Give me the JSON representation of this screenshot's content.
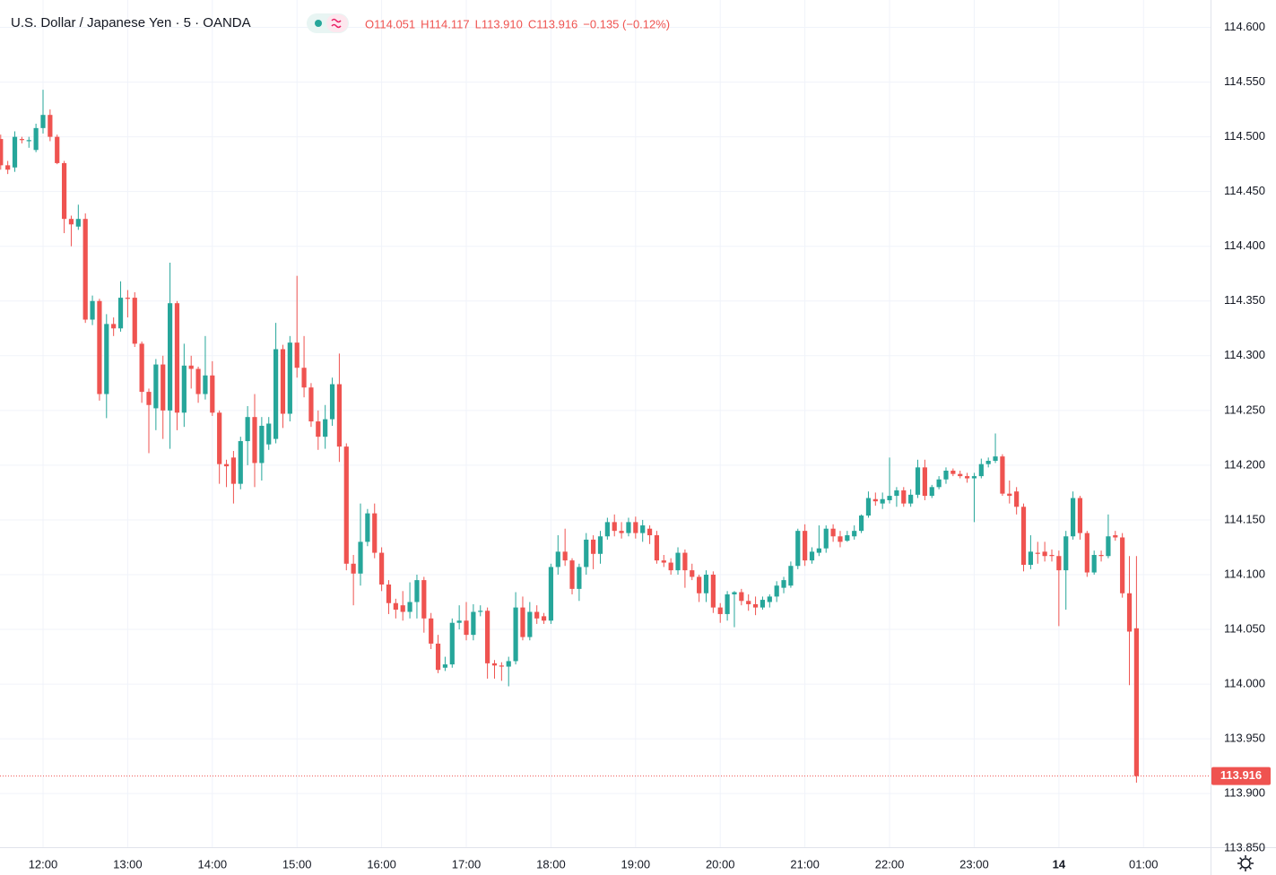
{
  "header": {
    "title": "U.S. Dollar / Japanese Yen · 5 · OANDA",
    "ohlc": [
      "O114.051",
      "H114.117",
      "L113.910",
      "C113.916"
    ],
    "change": "−0.135 (−0.12%)"
  },
  "chart_data": {
    "type": "candlestick",
    "up_color": "#26a69a",
    "down_color": "#ef5350",
    "grid": true,
    "ylim": [
      113.851,
      114.625
    ],
    "xlim": [
      -0.1,
      171.5
    ],
    "yticks": [
      {
        "value": 113.85,
        "label": "113.850"
      },
      {
        "value": 113.9,
        "label": "113.900"
      },
      {
        "value": 113.95,
        "label": "113.950"
      },
      {
        "value": 114,
        "label": "114.000"
      },
      {
        "value": 114.05,
        "label": "114.050"
      },
      {
        "value": 114.1,
        "label": "114.100"
      },
      {
        "value": 114.15,
        "label": "114.150"
      },
      {
        "value": 114.2,
        "label": "114.200"
      },
      {
        "value": 114.25,
        "label": "114.250"
      },
      {
        "value": 114.3,
        "label": "114.300"
      },
      {
        "value": 114.35,
        "label": "114.350"
      },
      {
        "value": 114.4,
        "label": "114.400"
      },
      {
        "value": 114.45,
        "label": "114.450"
      },
      {
        "value": 114.5,
        "label": "114.500"
      },
      {
        "value": 114.55,
        "label": "114.550"
      },
      {
        "value": 114.6,
        "label": "114.600"
      }
    ],
    "xticks": [
      {
        "value": 6,
        "label": "12:00"
      },
      {
        "value": 18,
        "label": "13:00"
      },
      {
        "value": 30,
        "label": "14:00"
      },
      {
        "value": 42,
        "label": "15:00"
      },
      {
        "value": 54,
        "label": "16:00"
      },
      {
        "value": 66,
        "label": "17:00"
      },
      {
        "value": 78,
        "label": "18:00"
      },
      {
        "value": 90,
        "label": "19:00"
      },
      {
        "value": 102,
        "label": "20:00"
      },
      {
        "value": 114,
        "label": "21:00"
      },
      {
        "value": 126,
        "label": "22:00"
      },
      {
        "value": 138,
        "label": "23:00"
      },
      {
        "value": 150,
        "label": "14"
      },
      {
        "value": 162,
        "label": "01:00"
      }
    ],
    "last_price": 113.916,
    "open": [
      114.498,
      114.474,
      114.472,
      114.498,
      114.496,
      114.488,
      114.508,
      114.52,
      114.5,
      114.476,
      114.425,
      114.418,
      114.425,
      114.333,
      114.35,
      114.265,
      114.329,
      114.325,
      114.353,
      114.353,
      114.311,
      114.267,
      114.252,
      114.292,
      114.25,
      114.348,
      114.248,
      114.291,
      114.288,
      114.265,
      114.282,
      114.248,
      114.201,
      114.207,
      114.183,
      114.222,
      114.244,
      114.202,
      114.219,
      114.224,
      114.306,
      114.247,
      114.312,
      114.289,
      114.271,
      114.24,
      114.226,
      114.242,
      114.274,
      114.217,
      114.11,
      114.101,
      114.13,
      114.156,
      114.12,
      114.091,
      114.074,
      114.072,
      114.066,
      114.075,
      114.095,
      114.06,
      114.037,
      114.015,
      114.018,
      114.056,
      114.058,
      114.045,
      114.066,
      114.067,
      114.019,
      114.017,
      114.016,
      114.021,
      114.07,
      114.043,
      114.066,
      114.062,
      114.058,
      114.107,
      114.121,
      114.113,
      114.087,
      114.107,
      114.132,
      114.119,
      114.135,
      114.148,
      114.14,
      114.138,
      114.148,
      114.138,
      114.142,
      114.136,
      114.113,
      114.111,
      114.104,
      114.12,
      114.104,
      114.098,
      114.083,
      114.1,
      114.07,
      114.064,
      114.082,
      114.084,
      114.076,
      114.073,
      114.07,
      114.075,
      114.08,
      114.088,
      114.09,
      114.108,
      114.14,
      114.113,
      114.12,
      114.124,
      114.142,
      114.135,
      114.131,
      114.135,
      114.14,
      114.154,
      114.169,
      114.165,
      114.168,
      114.172,
      114.177,
      114.165,
      114.173,
      114.198,
      114.172,
      114.18,
      114.187,
      114.195,
      114.192,
      114.19,
      114.188,
      114.19,
      114.201,
      114.204,
      114.208,
      114.174,
      114.176,
      114.162,
      114.109,
      114.12,
      114.121,
      114.118,
      114.117,
      114.104,
      114.135,
      114.17,
      114.138,
      114.102,
      114.118,
      114.117,
      114.136,
      114.134,
      114.083,
      114.051
    ],
    "high": [
      114.502,
      114.478,
      114.505,
      114.5,
      114.5,
      114.512,
      114.543,
      114.525,
      114.502,
      114.478,
      114.428,
      114.438,
      114.43,
      114.355,
      114.352,
      114.338,
      114.335,
      114.368,
      114.36,
      114.358,
      114.313,
      114.27,
      114.297,
      114.3,
      114.385,
      114.35,
      114.311,
      114.3,
      114.29,
      114.318,
      114.295,
      114.25,
      114.205,
      114.213,
      114.226,
      114.254,
      114.265,
      114.244,
      114.244,
      114.33,
      114.31,
      114.318,
      114.373,
      114.318,
      114.275,
      114.25,
      114.255,
      114.28,
      114.302,
      114.22,
      114.118,
      114.165,
      114.16,
      114.165,
      114.125,
      114.095,
      114.078,
      114.085,
      114.093,
      114.1,
      114.098,
      114.065,
      114.045,
      114.025,
      114.06,
      114.072,
      114.075,
      114.073,
      114.072,
      114.07,
      114.022,
      114.02,
      114.025,
      114.084,
      114.08,
      114.075,
      114.072,
      114.065,
      114.11,
      114.136,
      114.142,
      114.115,
      114.11,
      114.138,
      114.136,
      114.14,
      114.152,
      114.155,
      114.148,
      114.152,
      114.153,
      114.15,
      114.145,
      114.14,
      114.118,
      114.115,
      114.125,
      114.123,
      114.11,
      114.1,
      114.104,
      114.103,
      114.074,
      114.085,
      114.085,
      114.087,
      114.082,
      114.08,
      114.08,
      114.082,
      114.094,
      114.098,
      114.112,
      114.142,
      114.146,
      114.125,
      114.145,
      114.145,
      114.146,
      114.14,
      114.14,
      114.145,
      114.155,
      114.176,
      114.175,
      114.175,
      114.207,
      114.18,
      114.18,
      114.178,
      114.205,
      114.205,
      114.182,
      114.19,
      114.198,
      114.197,
      114.195,
      114.193,
      114.193,
      114.206,
      114.207,
      114.229,
      114.21,
      114.186,
      114.18,
      114.165,
      114.136,
      114.13,
      114.13,
      114.123,
      114.122,
      114.14,
      114.176,
      114.172,
      114.14,
      114.122,
      114.122,
      114.155,
      114.14,
      114.138,
      114.117,
      114.117
    ],
    "low": [
      114.47,
      114.466,
      114.468,
      114.494,
      114.49,
      114.486,
      114.503,
      114.496,
      114.475,
      114.412,
      114.4,
      114.415,
      114.33,
      114.328,
      114.259,
      114.243,
      114.318,
      114.322,
      114.335,
      114.308,
      114.257,
      114.211,
      114.232,
      114.224,
      114.215,
      114.232,
      114.235,
      114.27,
      114.257,
      114.26,
      114.245,
      114.183,
      114.18,
      114.165,
      114.178,
      114.2,
      114.18,
      114.186,
      114.214,
      114.22,
      114.234,
      114.24,
      114.28,
      114.262,
      114.235,
      114.214,
      114.215,
      114.236,
      114.203,
      114.104,
      114.072,
      114.09,
      114.126,
      114.115,
      114.085,
      114.064,
      114.06,
      114.058,
      114.06,
      114.06,
      114.047,
      114.032,
      114.01,
      114.012,
      114.015,
      114.05,
      114.04,
      114.04,
      114.062,
      114.005,
      114.005,
      114.003,
      113.998,
      114.018,
      114.04,
      114.04,
      114.055,
      114.055,
      114.055,
      114.1,
      114.108,
      114.082,
      114.076,
      114.1,
      114.105,
      114.11,
      114.132,
      114.135,
      114.133,
      114.135,
      114.133,
      114.13,
      114.128,
      114.11,
      114.107,
      114.1,
      114.1,
      114.088,
      114.095,
      114.075,
      114.075,
      114.065,
      114.056,
      114.058,
      114.052,
      114.072,
      114.067,
      114.063,
      114.068,
      114.07,
      114.075,
      114.083,
      114.088,
      114.105,
      114.108,
      114.11,
      114.117,
      114.12,
      114.13,
      114.125,
      114.13,
      114.132,
      114.138,
      114.152,
      114.163,
      114.16,
      114.165,
      114.162,
      114.162,
      114.162,
      114.17,
      114.168,
      114.17,
      114.178,
      114.183,
      114.19,
      114.188,
      114.184,
      114.148,
      114.188,
      114.198,
      114.202,
      114.172,
      114.165,
      114.155,
      114.103,
      114.105,
      114.11,
      114.112,
      114.112,
      114.053,
      114.068,
      114.132,
      114.132,
      114.098,
      114.1,
      114.112,
      114.115,
      114.131,
      114.079,
      113.999,
      113.91
    ],
    "close": [
      114.474,
      114.47,
      114.5,
      114.497,
      114.497,
      114.508,
      114.52,
      114.5,
      114.476,
      114.425,
      114.42,
      114.425,
      114.333,
      114.35,
      114.265,
      114.329,
      114.325,
      114.353,
      114.352,
      114.311,
      114.267,
      114.255,
      114.292,
      114.25,
      114.348,
      114.248,
      114.291,
      114.288,
      114.265,
      114.282,
      114.248,
      114.201,
      114.199,
      114.183,
      114.222,
      114.244,
      114.202,
      114.236,
      114.238,
      114.306,
      114.247,
      114.312,
      114.289,
      114.271,
      114.24,
      114.226,
      114.242,
      114.274,
      114.217,
      114.11,
      114.101,
      114.13,
      114.156,
      114.12,
      114.091,
      114.074,
      114.068,
      114.066,
      114.075,
      114.095,
      114.06,
      114.037,
      114.013,
      114.018,
      114.056,
      114.058,
      114.045,
      114.066,
      114.067,
      114.019,
      114.017,
      114.016,
      114.021,
      114.07,
      114.043,
      114.066,
      114.06,
      114.058,
      114.107,
      114.121,
      114.113,
      114.087,
      114.107,
      114.132,
      114.119,
      114.135,
      114.148,
      114.14,
      114.138,
      114.148,
      114.138,
      114.145,
      114.136,
      114.113,
      114.111,
      114.104,
      114.12,
      114.104,
      114.098,
      114.083,
      114.1,
      114.07,
      114.064,
      114.082,
      114.084,
      114.076,
      114.073,
      114.07,
      114.077,
      114.08,
      114.09,
      114.095,
      114.108,
      114.14,
      114.113,
      114.121,
      114.124,
      114.142,
      114.135,
      114.13,
      114.136,
      114.14,
      114.154,
      114.17,
      114.167,
      114.169,
      114.172,
      114.177,
      114.165,
      114.173,
      114.198,
      114.172,
      114.18,
      114.187,
      114.195,
      114.192,
      114.19,
      114.188,
      114.19,
      114.201,
      114.204,
      114.208,
      114.174,
      114.172,
      114.162,
      114.109,
      114.121,
      114.119,
      114.117,
      114.117,
      114.104,
      114.135,
      114.17,
      114.138,
      114.102,
      114.118,
      114.117,
      114.135,
      114.134,
      114.083,
      114.048,
      113.916
    ]
  }
}
